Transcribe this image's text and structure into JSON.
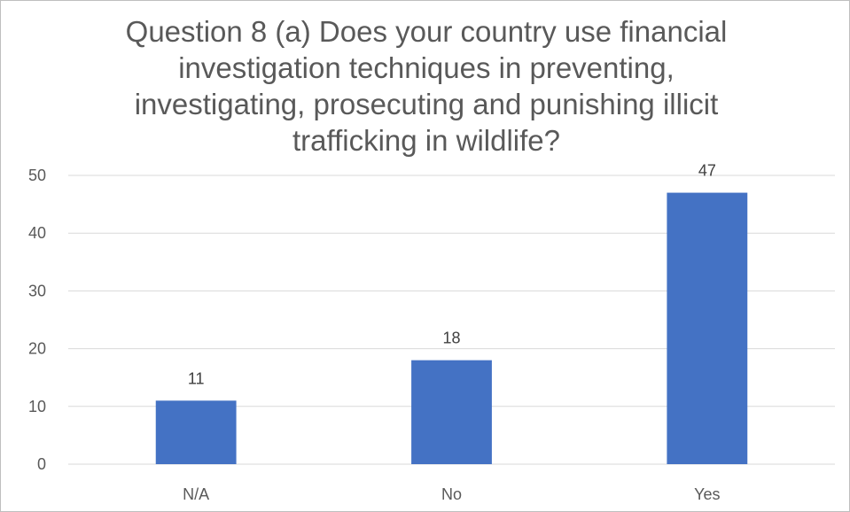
{
  "chart_data": {
    "type": "bar",
    "title_lines": [
      "Question 8 (a) Does your country use financial",
      "investigation techniques in preventing,",
      "investigating, prosecuting and punishing illicit",
      "trafficking in wildlife?"
    ],
    "categories": [
      "N/A",
      "No",
      "Yes"
    ],
    "values": [
      11,
      18,
      47
    ],
    "data_labels": [
      "11",
      "18",
      "47"
    ],
    "ylim": [
      0,
      50
    ],
    "yticks": [
      0,
      10,
      20,
      30,
      40,
      50
    ],
    "ytick_labels": [
      "0",
      "10",
      "20",
      "30",
      "40",
      "50"
    ],
    "grid": true,
    "legend": "none",
    "bar_color": "#4472c4",
    "grid_color": "#d9d9d9",
    "text_color": "#595959"
  }
}
